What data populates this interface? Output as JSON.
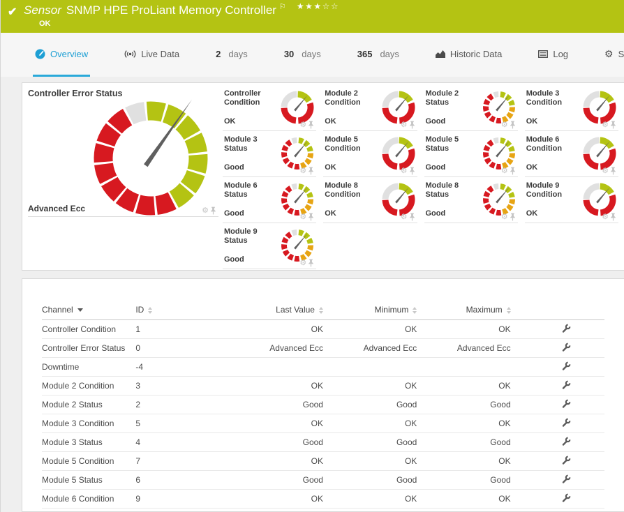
{
  "colors": {
    "green": "#b4c313",
    "red": "#d71920",
    "yellow": "#e7a413",
    "gray_segment": "#e0e0e0",
    "accent_blue": "#1d9fd4"
  },
  "header": {
    "title_prefix": "Sensor",
    "title": "SNMP HPE ProLiant Memory Controller",
    "status": "OK",
    "rating_filled": 3,
    "rating_total": 5
  },
  "tabs": [
    {
      "id": "overview",
      "label": "Overview",
      "icon": "gauge-icon",
      "active": true
    },
    {
      "id": "live-data",
      "label": "Live Data",
      "icon": "live-data-icon"
    },
    {
      "id": "2-days",
      "number": "2",
      "label": "days"
    },
    {
      "id": "30-days",
      "number": "30",
      "label": "days"
    },
    {
      "id": "365-days",
      "number": "365",
      "label": "days"
    },
    {
      "id": "historic-data",
      "label": "Historic Data",
      "icon": "historic-data-icon"
    },
    {
      "id": "log",
      "label": "Log",
      "icon": "log-icon"
    },
    {
      "id": "settings",
      "label": "Settings",
      "icon": "gear-icon"
    }
  ],
  "overview": {
    "big_gauge": {
      "title": "Controller Error Status",
      "value": "Advanced Ecc"
    },
    "small_gauges": [
      {
        "title": "Controller Condition",
        "value": "OK",
        "kind": "condition"
      },
      {
        "title": "Module 2 Condition",
        "value": "OK",
        "kind": "condition"
      },
      {
        "title": "Module 2 Status",
        "value": "Good",
        "kind": "status"
      },
      {
        "title": "Module 3 Condition",
        "value": "OK",
        "kind": "condition"
      },
      {
        "title": "Module 3 Status",
        "value": "Good",
        "kind": "status"
      },
      {
        "title": "Module 5 Condition",
        "value": "OK",
        "kind": "condition"
      },
      {
        "title": "Module 5 Status",
        "value": "Good",
        "kind": "status"
      },
      {
        "title": "Module 6 Condition",
        "value": "OK",
        "kind": "condition"
      },
      {
        "title": "Module 6 Status",
        "value": "Good",
        "kind": "status"
      },
      {
        "title": "Module 8 Condition",
        "value": "OK",
        "kind": "condition"
      },
      {
        "title": "Module 8 Status",
        "value": "Good",
        "kind": "status"
      },
      {
        "title": "Module 9 Condition",
        "value": "OK",
        "kind": "condition"
      },
      {
        "title": "Module 9 Status",
        "value": "Good",
        "kind": "status"
      }
    ]
  },
  "table": {
    "columns": [
      {
        "label": "Channel",
        "sort": "desc"
      },
      {
        "label": "ID",
        "sort": "both"
      },
      {
        "label": "Last Value",
        "sort": "both"
      },
      {
        "label": "Minimum",
        "sort": "both"
      },
      {
        "label": "Maximum",
        "sort": "both"
      }
    ],
    "rows": [
      {
        "channel": "Controller Condition",
        "id": "1",
        "last": "OK",
        "min": "OK",
        "max": "OK"
      },
      {
        "channel": "Controller Error Status",
        "id": "0",
        "last": "Advanced Ecc",
        "min": "Advanced Ecc",
        "max": "Advanced Ecc"
      },
      {
        "channel": "Downtime",
        "id": "-4",
        "last": "",
        "min": "",
        "max": ""
      },
      {
        "channel": "Module 2 Condition",
        "id": "3",
        "last": "OK",
        "min": "OK",
        "max": "OK"
      },
      {
        "channel": "Module 2 Status",
        "id": "2",
        "last": "Good",
        "min": "Good",
        "max": "Good"
      },
      {
        "channel": "Module 3 Condition",
        "id": "5",
        "last": "OK",
        "min": "OK",
        "max": "OK"
      },
      {
        "channel": "Module 3 Status",
        "id": "4",
        "last": "Good",
        "min": "Good",
        "max": "Good"
      },
      {
        "channel": "Module 5 Condition",
        "id": "7",
        "last": "OK",
        "min": "OK",
        "max": "OK"
      },
      {
        "channel": "Module 5 Status",
        "id": "6",
        "last": "Good",
        "min": "Good",
        "max": "Good"
      },
      {
        "channel": "Module 6 Condition",
        "id": "9",
        "last": "OK",
        "min": "OK",
        "max": "OK"
      }
    ]
  }
}
